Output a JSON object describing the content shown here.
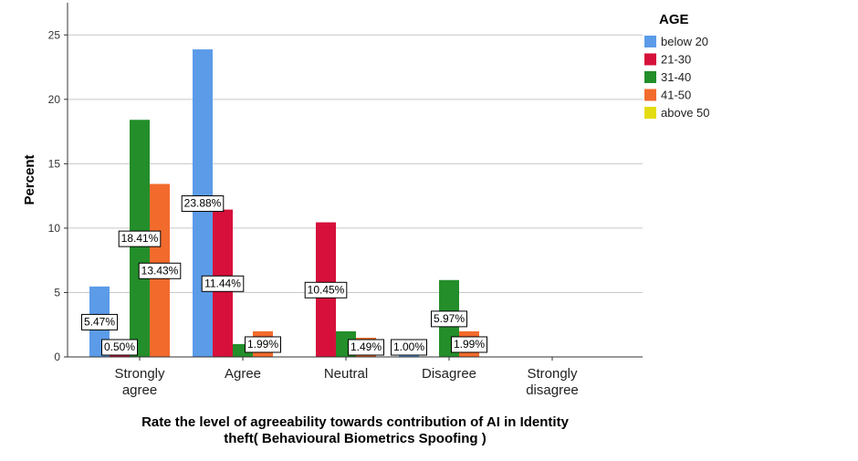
{
  "chart_data": {
    "type": "bar",
    "title": "",
    "xlabel": "Rate the level of agreeability towards contribution of AI in Identity theft( Behavioural Biometrics Spoofing )",
    "xlabel_lines": [
      "Rate the level of agreeability towards contribution of AI in Identity",
      "theft( Behavioural Biometrics Spoofing )"
    ],
    "ylabel": "Percent",
    "ylim": [
      0,
      27.5
    ],
    "yticks": [
      0,
      5,
      10,
      15,
      20,
      25
    ],
    "grid": true,
    "categories": [
      "Strongly agree",
      "Agree",
      "Neutral",
      "Disagree",
      "Strongly disagree"
    ],
    "category_lines": [
      [
        "Strongly",
        "agree"
      ],
      [
        "Agree"
      ],
      [
        "Neutral"
      ],
      [
        "Disagree"
      ],
      [
        "Strongly",
        "disagree"
      ]
    ],
    "legend": {
      "title": "AGE",
      "placement": "top-right"
    },
    "series": [
      {
        "name": "below 20",
        "color": "#5b9be8",
        "values": [
          5.47,
          23.88,
          0,
          1.0,
          0
        ],
        "labels": [
          "5.47%",
          "23.88%",
          "",
          "1.00%",
          ""
        ]
      },
      {
        "name": "21-30",
        "color": "#d6103b",
        "values": [
          0.5,
          11.44,
          10.45,
          0,
          0
        ],
        "labels": [
          "0.50%",
          "11.44%",
          "10.45%",
          "",
          ""
        ]
      },
      {
        "name": "31-40",
        "color": "#238e2a",
        "values": [
          18.41,
          1.0,
          1.99,
          5.97,
          0
        ],
        "labels": [
          "18.41%",
          "",
          "",
          "5.97%",
          ""
        ]
      },
      {
        "name": "41-50",
        "color": "#f26b2d",
        "values": [
          13.43,
          1.99,
          1.49,
          1.99,
          0
        ],
        "labels": [
          "13.43%",
          "1.99%",
          "1.49%",
          "1.99%",
          ""
        ]
      },
      {
        "name": "above 50",
        "color": "#e4dc12",
        "values": [
          0,
          0,
          0,
          0,
          0
        ],
        "labels": [
          "",
          "",
          "",
          "",
          ""
        ]
      }
    ]
  }
}
